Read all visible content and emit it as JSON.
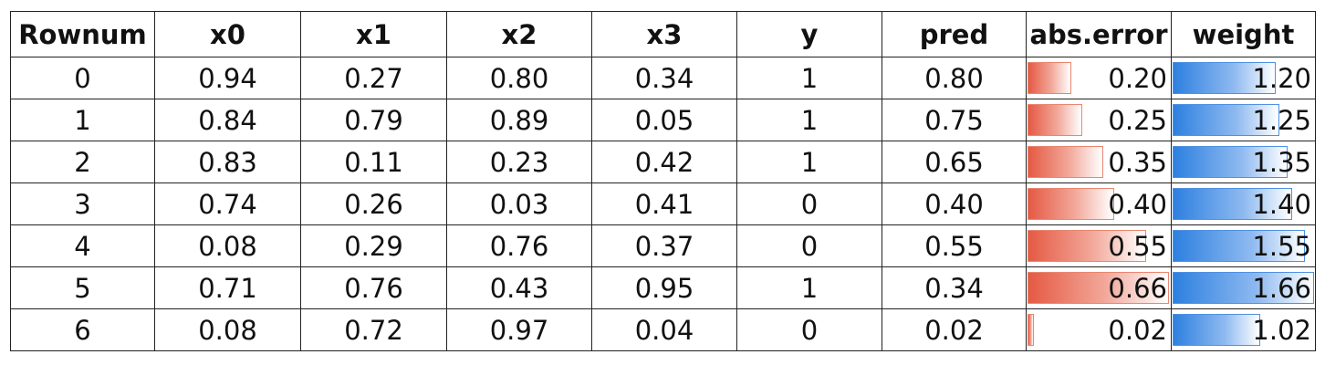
{
  "table": {
    "columns": [
      "Rownum",
      "x0",
      "x1",
      "x2",
      "x3",
      "y",
      "pred",
      "abs.error",
      "weight"
    ],
    "rows": [
      {
        "rownum": "0",
        "x0": "0.94",
        "x1": "0.27",
        "x2": "0.80",
        "x3": "0.34",
        "y": "1",
        "pred": "0.80",
        "abs_error": "0.20",
        "weight": "1.20",
        "abs_error_value": 0.2,
        "weight_value": 1.2
      },
      {
        "rownum": "1",
        "x0": "0.84",
        "x1": "0.79",
        "x2": "0.89",
        "x3": "0.05",
        "y": "1",
        "pred": "0.75",
        "abs_error": "0.25",
        "weight": "1.25",
        "abs_error_value": 0.25,
        "weight_value": 1.25
      },
      {
        "rownum": "2",
        "x0": "0.83",
        "x1": "0.11",
        "x2": "0.23",
        "x3": "0.42",
        "y": "1",
        "pred": "0.65",
        "abs_error": "0.35",
        "weight": "1.35",
        "abs_error_value": 0.35,
        "weight_value": 1.35
      },
      {
        "rownum": "3",
        "x0": "0.74",
        "x1": "0.26",
        "x2": "0.03",
        "x3": "0.41",
        "y": "0",
        "pred": "0.40",
        "abs_error": "0.40",
        "weight": "1.40",
        "abs_error_value": 0.4,
        "weight_value": 1.4
      },
      {
        "rownum": "4",
        "x0": "0.08",
        "x1": "0.29",
        "x2": "0.76",
        "x3": "0.37",
        "y": "0",
        "pred": "0.55",
        "abs_error": "0.55",
        "weight": "1.55",
        "abs_error_value": 0.55,
        "weight_value": 1.55
      },
      {
        "rownum": "5",
        "x0": "0.71",
        "x1": "0.76",
        "x2": "0.43",
        "x3": "0.95",
        "y": "1",
        "pred": "0.34",
        "abs_error": "0.66",
        "weight": "1.66",
        "abs_error_value": 0.66,
        "weight_value": 1.66
      },
      {
        "rownum": "6",
        "x0": "0.08",
        "x1": "0.72",
        "x2": "0.97",
        "x3": "0.04",
        "y": "0",
        "pred": "0.02",
        "abs_error": "0.02",
        "weight": "1.02",
        "abs_error_value": 0.02,
        "weight_value": 1.02
      }
    ]
  },
  "colors": {
    "abs_error_bar": "#e55a44",
    "weight_bar": "#2d80e0"
  }
}
